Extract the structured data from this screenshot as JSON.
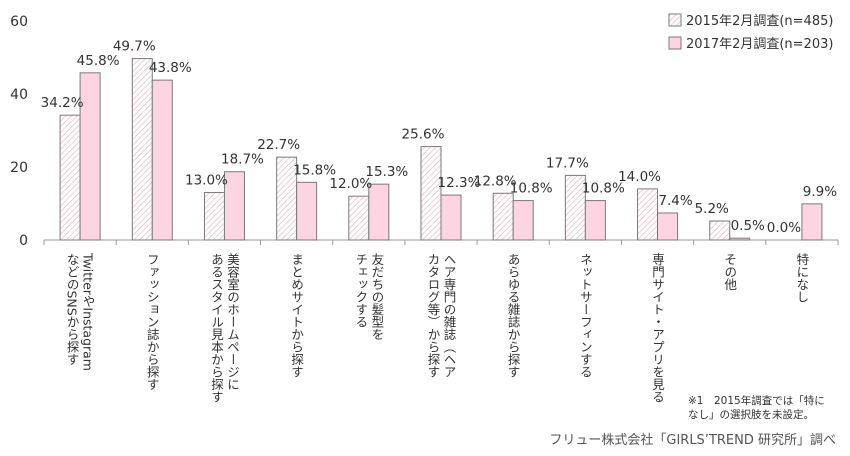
{
  "chart_data": {
    "type": "bar",
    "ylim": [
      0,
      60
    ],
    "yticks": [
      0,
      20,
      40,
      60
    ],
    "legend_position": "top-right",
    "categories": [
      [
        "TwitterやInstagram",
        "などのSNSから探す"
      ],
      [
        "ファッション誌から探す"
      ],
      [
        "美容室のホームページに",
        "あるスタイル見本から探す"
      ],
      [
        "まとめサイトから探す"
      ],
      [
        "友だちの髪型を",
        "チェックする"
      ],
      [
        "ヘア専門の雑誌（ヘア",
        "カタログ等）から探す"
      ],
      [
        "あらゆる雑誌から探す"
      ],
      [
        "ネットサーフィンする"
      ],
      [
        "専門サイト・アプリを見る"
      ],
      [
        "その他"
      ],
      [
        "特になし"
      ]
    ],
    "series": [
      {
        "name": "2015年2月調査(n=485)",
        "values": [
          34.2,
          49.7,
          13.0,
          22.7,
          12.0,
          25.6,
          12.8,
          17.7,
          14.0,
          5.2,
          0.0
        ],
        "labels": [
          "34.2%",
          "49.7%",
          "13.0%",
          "22.7%",
          "12.0%",
          "25.6%",
          "12.8%",
          "17.7%",
          "14.0%",
          "5.2%",
          "0.0%"
        ],
        "fill": "#ffffff",
        "hatch": "#e8b7c6",
        "stroke": "#7a7a7a"
      },
      {
        "name": "2017年2月調査(n=203)",
        "values": [
          45.8,
          43.8,
          18.7,
          15.8,
          15.3,
          12.3,
          10.8,
          10.8,
          7.4,
          0.5,
          9.9
        ],
        "labels": [
          "45.8%",
          "43.8%",
          "18.7%",
          "15.8%",
          "15.3%",
          "12.3%",
          "10.8%",
          "10.8%",
          "7.4%",
          "0.5%",
          "9.9%"
        ],
        "fill": "#fdd4e1",
        "stroke": "#7a7a7a"
      }
    ]
  },
  "footnote": [
    "※1　2015年調査では「特に",
    "なし」の選択肢を未設定。"
  ],
  "credit": "フリュー株式会社「GIRLS’TREND 研究所」調べ"
}
